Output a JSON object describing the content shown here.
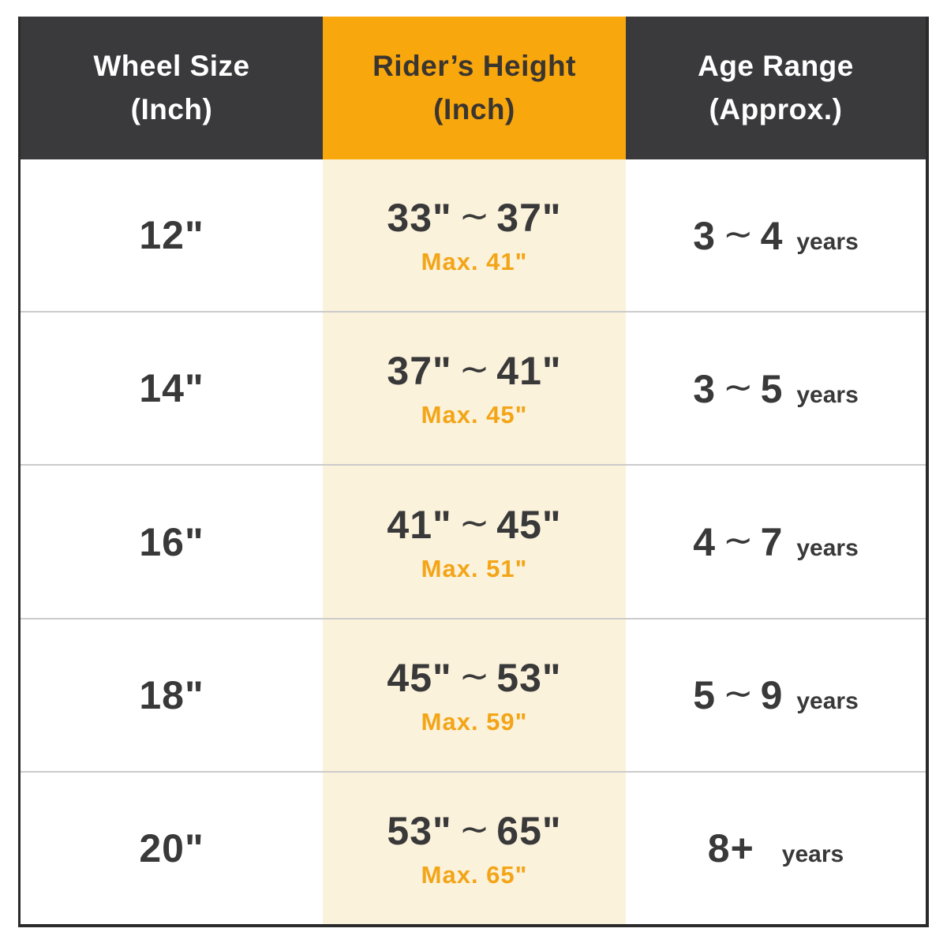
{
  "table": {
    "columns": [
      {
        "id": "wheel",
        "header_line1": "Wheel Size",
        "header_line2": "(Inch)",
        "theme": "dark"
      },
      {
        "id": "height",
        "header_line1": "Rider’s Height",
        "header_line2": "(Inch)",
        "theme": "orange"
      },
      {
        "id": "age",
        "header_line1": "Age Range",
        "header_line2": "(Approx.)",
        "theme": "dark"
      }
    ],
    "rows": [
      {
        "wheel": "12\"",
        "height_min": "33\"",
        "height_sep": "∼",
        "height_max": "37\"",
        "height_note": "Max. 41\"",
        "age_left": "3",
        "age_sep": "∼",
        "age_right": "4",
        "age_unit": "years"
      },
      {
        "wheel": "14\"",
        "height_min": "37\"",
        "height_sep": "∼",
        "height_max": "41\"",
        "height_note": "Max. 45\"",
        "age_left": "3",
        "age_sep": "∼",
        "age_right": "5",
        "age_unit": "years"
      },
      {
        "wheel": "16\"",
        "height_min": "41\"",
        "height_sep": "∼",
        "height_max": "45\"",
        "height_note": "Max. 51\"",
        "age_left": "4",
        "age_sep": "∼",
        "age_right": "7",
        "age_unit": "years"
      },
      {
        "wheel": "18\"",
        "height_min": "45\"",
        "height_sep": "∼",
        "height_max": "53\"",
        "height_note": "Max. 59\"",
        "age_left": "5",
        "age_sep": "∼",
        "age_right": "9",
        "age_unit": "years"
      },
      {
        "wheel": "20\"",
        "height_min": "53\"",
        "height_sep": "∼",
        "height_max": "65\"",
        "height_note": "Max. 65\"",
        "age_left": "8+",
        "age_sep": "",
        "age_right": "",
        "age_unit": "years"
      }
    ]
  },
  "colors": {
    "header_dark_bg": "#3A3A3C",
    "header_dark_text": "#FFFFFF",
    "header_orange_bg": "#F8A70C",
    "header_orange_text": "#3B3530",
    "height_column_bg": "#FBF2DC",
    "note_orange_text": "#F3A517",
    "body_text": "#393939",
    "row_divider": "#CBCBCB",
    "outer_border": "#2B2B2B"
  },
  "chart_data": {
    "type": "table",
    "title": "Kids bike sizing chart",
    "columns": [
      "Wheel Size (Inch)",
      "Rider’s Height (Inch)",
      "Age Range (Approx.)"
    ],
    "rows": [
      {
        "wheel_size": "12\"",
        "rider_height": "33\"∼37\"",
        "rider_height_max": "Max. 41\"",
        "age_range": "3∼4 years"
      },
      {
        "wheel_size": "14\"",
        "rider_height": "37\"∼41\"",
        "rider_height_max": "Max. 45\"",
        "age_range": "3∼5 years"
      },
      {
        "wheel_size": "16\"",
        "rider_height": "41\"∼45\"",
        "rider_height_max": "Max. 51\"",
        "age_range": "4∼7 years"
      },
      {
        "wheel_size": "18\"",
        "rider_height": "45\"∼53\"",
        "rider_height_max": "Max. 59\"",
        "age_range": "5∼9 years"
      },
      {
        "wheel_size": "20\"",
        "rider_height": "53\"∼65\"",
        "rider_height_max": "Max. 65\"",
        "age_range": "8+ years"
      }
    ]
  }
}
